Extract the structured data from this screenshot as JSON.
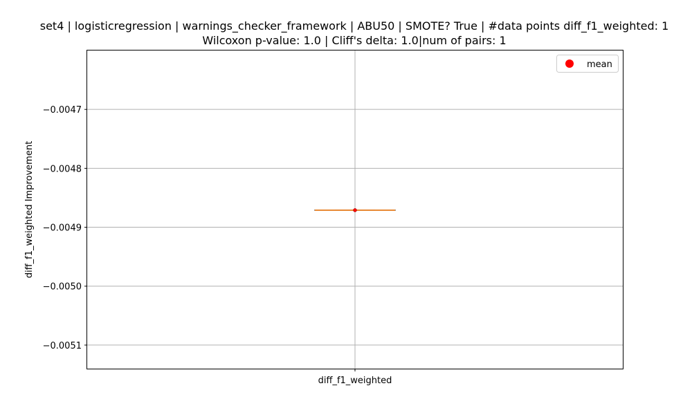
{
  "chart_data": {
    "type": "box",
    "title_line1": "set4 | logisticregression | warnings_checker_framework | ABU50 | SMOTE? True | #data points diff_f1_weighted: 1",
    "title_line2": "Wilcoxon p-value: 1.0 | Cliff's delta: 1.0|num of pairs: 1",
    "ylabel": "diff_f1_weighted Improvement",
    "categories": [
      "diff_f1_weighted"
    ],
    "ylim": [
      -0.00514,
      -0.0046
    ],
    "yticks": [
      -0.0047,
      -0.0048,
      -0.0049,
      -0.005,
      -0.0051
    ],
    "ytick_labels": [
      "−0.0047",
      "−0.0048",
      "−0.0049",
      "−0.0050",
      "−0.0051"
    ],
    "grid": true,
    "legend": {
      "placement": "top-right",
      "entries": [
        {
          "label": "mean",
          "color": "#ff0000",
          "marker": "circle"
        }
      ]
    },
    "series": [
      {
        "category": "diff_f1_weighted",
        "min": -0.004871,
        "q1": -0.004871,
        "median": -0.004871,
        "q3": -0.004871,
        "max": -0.004871,
        "mean": -0.004871
      }
    ],
    "colors": {
      "median": "#ff7f0e",
      "mean": "#ff0000",
      "grid": "#b0b0b0",
      "box": "#000000"
    }
  }
}
